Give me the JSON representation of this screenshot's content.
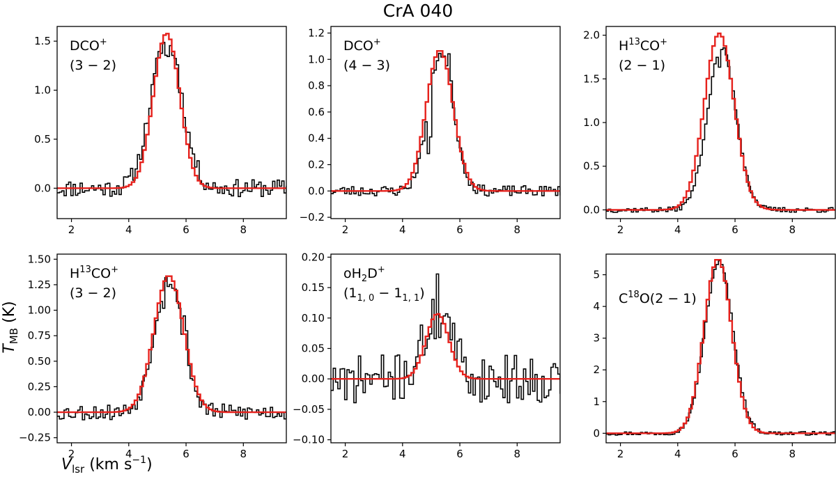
{
  "colors": {
    "observed": "#000000",
    "fit": "#e6211c"
  },
  "chart_data": {
    "title": "CrA 040",
    "xlabel_main": "V",
    "xlabel_sub": "lsr",
    "xlabel_units": " (km s",
    "xlabel_exp": "−1",
    "xlabel_close": ")",
    "ylabel_main": "T",
    "ylabel_sub": "MB",
    "ylabel_units": " (K)",
    "panels": [
      {
        "id": "dco-32",
        "type": "line",
        "xlim": [
          1.5,
          9.5
        ],
        "ylim": [
          -0.31,
          1.65
        ],
        "xticks": [
          2,
          4,
          6,
          8
        ],
        "xtick_labels": [
          "2",
          "4",
          "6",
          "8"
        ],
        "yticks": [
          0.0,
          0.5,
          1.0,
          1.5
        ],
        "ytick_labels": [
          "0.0",
          "0.5",
          "1.0",
          "1.5"
        ],
        "label_line1": "DCO",
        "label_sup1": "+",
        "label_line2": "(3 − 2)",
        "label_line2_sub": "",
        "series": [
          {
            "name": "observed",
            "seed": 11,
            "noise": 0.09,
            "peak": 1.52,
            "center": 5.28,
            "sigma": 0.54,
            "spikes": [
              [
                4.2,
                0.0
              ],
              [
                5.3,
                -0.18
              ],
              [
                5.65,
                0.08
              ]
            ]
          },
          {
            "name": "Gaussian fit",
            "peak": 1.58,
            "center": 5.32,
            "sigma": 0.46
          }
        ]
      },
      {
        "id": "dco-43",
        "type": "line",
        "xlim": [
          1.5,
          9.5
        ],
        "ylim": [
          -0.21,
          1.25
        ],
        "xticks": [
          2,
          4,
          6,
          8
        ],
        "xtick_labels": [
          "2",
          "4",
          "6",
          "8"
        ],
        "yticks": [
          -0.2,
          0.0,
          0.2,
          0.4,
          0.6,
          0.8,
          1.0,
          1.2
        ],
        "ytick_labels": [
          "−0.2",
          "0.0",
          "0.2",
          "0.4",
          "0.6",
          "0.8",
          "1.0",
          "1.2"
        ],
        "label_line1": "DCO",
        "label_sup1": "+",
        "label_line2": "(4 − 3)",
        "label_line2_sub": "",
        "series": [
          {
            "name": "observed",
            "seed": 23,
            "noise": 0.04,
            "peak": 1.05,
            "center": 5.3,
            "sigma": 0.44,
            "spikes": [
              [
                4.9,
                -0.35
              ],
              [
                5.55,
                0.15
              ],
              [
                5.65,
                0.12
              ]
            ]
          },
          {
            "name": "Gaussian fit",
            "peak": 1.07,
            "center": 5.3,
            "sigma": 0.47
          }
        ]
      },
      {
        "id": "h13co-21",
        "type": "line",
        "xlim": [
          1.5,
          9.5
        ],
        "ylim": [
          -0.1,
          2.1
        ],
        "xticks": [
          2,
          4,
          6,
          8
        ],
        "xtick_labels": [
          "2",
          "4",
          "6",
          "8"
        ],
        "yticks": [
          0.0,
          0.5,
          1.0,
          1.5,
          2.0
        ],
        "ytick_labels": [
          "0.0",
          "0.5",
          "1.0",
          "1.5",
          "2.0"
        ],
        "label_line1": "H",
        "label_sup1": "13",
        "label_mid1": "CO",
        "label_sup2": "+",
        "label_line2": "(2 − 1)",
        "label_line2_sub": "",
        "series": [
          {
            "name": "observed",
            "seed": 37,
            "noise": 0.03,
            "peak": 1.85,
            "center": 5.5,
            "sigma": 0.5,
            "spikes": [
              [
                5.4,
                -0.2
              ]
            ]
          },
          {
            "name": "Gaussian fit",
            "peak": 2.02,
            "center": 5.45,
            "sigma": 0.52
          }
        ]
      },
      {
        "id": "h13co-32",
        "type": "line",
        "xlim": [
          1.5,
          9.5
        ],
        "ylim": [
          -0.3,
          1.55
        ],
        "xticks": [
          2,
          4,
          6,
          8
        ],
        "xtick_labels": [
          "2",
          "4",
          "6",
          "8"
        ],
        "yticks": [
          -0.25,
          0.0,
          0.25,
          0.5,
          0.75,
          1.0,
          1.25,
          1.5
        ],
        "ytick_labels": [
          "−0.25",
          "0.00",
          "0.25",
          "0.50",
          "0.75",
          "1.00",
          "1.25",
          "1.50"
        ],
        "label_line1": "H",
        "label_sup1": "13",
        "label_mid1": "CO",
        "label_sup2": "+",
        "label_line2": "(3 − 2)",
        "label_line2_sub": "",
        "series": [
          {
            "name": "observed",
            "seed": 53,
            "noise": 0.08,
            "peak": 1.3,
            "center": 5.35,
            "sigma": 0.5,
            "spikes": [
              [
                5.9,
                0.25
              ],
              [
                5.95,
                0.2
              ],
              [
                5.2,
                -0.15
              ]
            ]
          },
          {
            "name": "Gaussian fit",
            "peak": 1.34,
            "center": 5.4,
            "sigma": 0.52
          }
        ]
      },
      {
        "id": "oh2d",
        "type": "line",
        "xlim": [
          1.5,
          9.5
        ],
        "ylim": [
          -0.105,
          0.205
        ],
        "xticks": [
          2,
          4,
          6,
          8
        ],
        "xtick_labels": [
          "2",
          "4",
          "6",
          "8"
        ],
        "yticks": [
          -0.1,
          -0.05,
          0.0,
          0.05,
          0.1,
          0.15,
          0.2
        ],
        "ytick_labels": [
          "−0.10",
          "−0.05",
          "0.00",
          "0.05",
          "0.10",
          "0.15",
          "0.20"
        ],
        "label_line1": "oH",
        "label_sub1": "2",
        "label_mid1": "D",
        "label_sup2": "+",
        "label_line2": "(1",
        "label_line2_sub": "1, 0",
        "label_line2_b": " − 1",
        "label_line2_sub_b": "1, 1",
        "label_line2_c": ")",
        "series": [
          {
            "name": "observed",
            "seed": 71,
            "noise": 0.04,
            "peak": 0.1,
            "center": 5.2,
            "sigma": 0.5,
            "spikes": [
              [
                5.2,
                0.09
              ],
              [
                5.6,
                0.05
              ],
              [
                2.0,
                -0.07
              ]
            ]
          },
          {
            "name": "Gaussian fit",
            "peak": 0.107,
            "center": 5.22,
            "sigma": 0.4
          }
        ]
      },
      {
        "id": "c18o-21",
        "type": "line",
        "xlim": [
          1.5,
          9.5
        ],
        "ylim": [
          -0.3,
          5.65
        ],
        "xticks": [
          2,
          4,
          6,
          8
        ],
        "xtick_labels": [
          "2",
          "4",
          "6",
          "8"
        ],
        "yticks": [
          0,
          1,
          2,
          3,
          4,
          5
        ],
        "ytick_labels": [
          "0",
          "1",
          "2",
          "3",
          "4",
          "5"
        ],
        "label_line1": "C",
        "label_sup1": "18",
        "label_mid1": "O(2 − 1)",
        "label_line2": "",
        "label_line2_sub": "",
        "series": [
          {
            "name": "observed",
            "seed": 97,
            "noise": 0.06,
            "peak": 5.4,
            "center": 5.4,
            "sigma": 0.49,
            "spikes": []
          },
          {
            "name": "Gaussian fit",
            "peak": 5.5,
            "center": 5.4,
            "sigma": 0.48
          }
        ]
      }
    ]
  }
}
